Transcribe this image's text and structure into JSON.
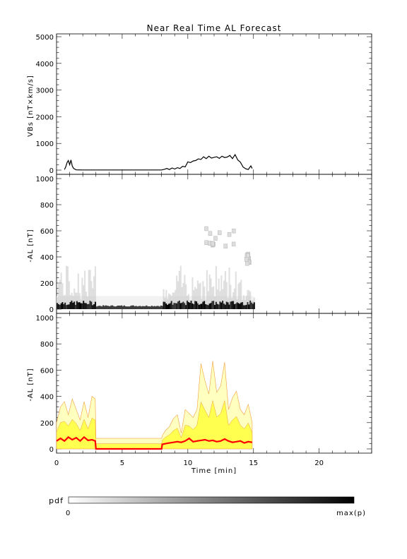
{
  "title": "Near Real Time AL Forecast",
  "colorbar": {
    "label": "pdf",
    "min_label": "0",
    "max_label": "max(p)"
  },
  "colors": {
    "axes": "#000000",
    "median_line": "#ff0000",
    "band_fill": "#ffff33",
    "band_edge": "#f0a040",
    "band_light": "#ffffc0"
  },
  "chart_data": [
    {
      "id": "vbs",
      "type": "line",
      "ylabel": "VBs [nT×km/s]",
      "xlim": [
        0,
        24
      ],
      "ylim": [
        0,
        5000
      ],
      "yticks": [
        0,
        1000,
        2000,
        3000,
        4000,
        5000
      ],
      "xticks": [
        0,
        5,
        10,
        15,
        20
      ],
      "x": [
        0.6,
        0.7,
        0.8,
        0.9,
        1.0,
        1.1,
        1.2,
        1.3,
        1.5,
        2,
        3,
        4,
        5,
        6,
        7,
        8,
        8.2,
        8.4,
        8.6,
        8.8,
        9.0,
        9.2,
        9.4,
        9.6,
        9.8,
        10.0,
        10.2,
        10.4,
        10.6,
        10.8,
        11.0,
        11.2,
        11.4,
        11.6,
        11.8,
        12.0,
        12.2,
        12.4,
        12.6,
        12.8,
        13.0,
        13.2,
        13.4,
        13.6,
        13.8,
        14.0,
        14.2,
        14.4,
        14.6,
        14.8,
        14.9
      ],
      "y": [
        20,
        120,
        280,
        360,
        200,
        380,
        150,
        60,
        10,
        5,
        5,
        5,
        5,
        5,
        5,
        5,
        30,
        60,
        20,
        80,
        40,
        90,
        60,
        140,
        120,
        310,
        280,
        340,
        360,
        420,
        400,
        500,
        430,
        520,
        450,
        480,
        500,
        440,
        520,
        470,
        490,
        550,
        430,
        580,
        380,
        300,
        120,
        50,
        20,
        160,
        60
      ]
    },
    {
      "id": "al_pdf",
      "type": "heatmap",
      "ylabel": "-AL [nT]",
      "xlim": [
        0,
        24
      ],
      "ylim": [
        0,
        1000
      ],
      "yticks": [
        0,
        200,
        400,
        600,
        800,
        1000
      ],
      "xticks": [
        0,
        5,
        10,
        15,
        20
      ],
      "data_range_x": [
        0,
        15
      ],
      "high_density_band_nT": [
        0,
        60
      ],
      "spread_band_nT": [
        0,
        100
      ],
      "outlier_clusters": [
        {
          "x": [
            10.9,
            13.5
          ],
          "y": [
            480,
            680
          ]
        },
        {
          "x": [
            14.3,
            14.6
          ],
          "y": [
            350,
            430
          ]
        }
      ]
    },
    {
      "id": "al_forecast",
      "type": "area",
      "ylabel": "-AL [nT]",
      "xlabel": "Time [min]",
      "xlim": [
        0,
        24
      ],
      "ylim": [
        0,
        1000
      ],
      "yticks": [
        0,
        200,
        400,
        600,
        800,
        1000
      ],
      "xticks": [
        0,
        5,
        10,
        15,
        20
      ],
      "x": [
        0.0,
        0.3,
        0.6,
        0.9,
        1.2,
        1.5,
        1.8,
        2.1,
        2.4,
        2.7,
        2.95,
        3.0,
        8.0,
        8.05,
        8.3,
        8.6,
        8.9,
        9.2,
        9.5,
        9.8,
        10.1,
        10.4,
        10.7,
        11.0,
        11.3,
        11.6,
        11.9,
        12.2,
        12.5,
        12.8,
        13.1,
        13.4,
        13.7,
        14.0,
        14.3,
        14.6,
        14.9
      ],
      "median": [
        60,
        80,
        60,
        90,
        70,
        85,
        60,
        90,
        65,
        70,
        60,
        0,
        0,
        35,
        40,
        45,
        50,
        55,
        50,
        60,
        80,
        55,
        60,
        65,
        70,
        60,
        65,
        55,
        60,
        75,
        60,
        50,
        55,
        60,
        45,
        55,
        50
      ],
      "upper": [
        200,
        320,
        360,
        260,
        380,
        300,
        220,
        360,
        240,
        400,
        380,
        80,
        80,
        100,
        140,
        170,
        230,
        260,
        120,
        300,
        270,
        240,
        300,
        650,
        520,
        420,
        670,
        430,
        480,
        660,
        300,
        390,
        440,
        300,
        260,
        340,
        200
      ]
    }
  ]
}
